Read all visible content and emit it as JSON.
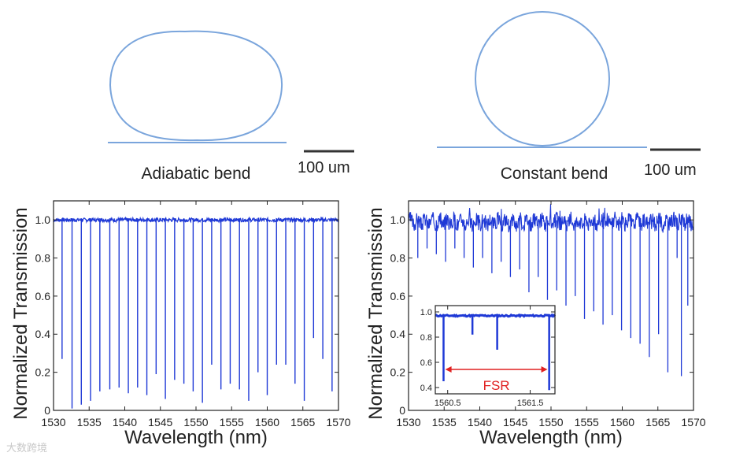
{
  "diagrams": {
    "adiabatic": {
      "caption": "Adiabatic bend",
      "scale_label": "100 um"
    },
    "constant": {
      "caption": "Constant bend",
      "scale_label": "100 um"
    }
  },
  "colors": {
    "ring": "#7aa5dc",
    "trace": "#1f39d6",
    "fsr_arrow": "#e02020",
    "axis": "#222222"
  },
  "watermark": "大数跨境",
  "chart_data": [
    {
      "type": "line",
      "id": "adiabatic",
      "title": "",
      "xlabel": "Wavelength (nm)",
      "ylabel": "Normalized Transmission",
      "xlim": [
        1530,
        1570
      ],
      "ylim": [
        0,
        1.1
      ],
      "xticks": [
        1530,
        1535,
        1540,
        1545,
        1550,
        1555,
        1560,
        1565,
        1570
      ],
      "yticks": [
        0,
        0.2,
        0.4,
        0.6,
        0.8,
        1.0
      ],
      "ytick_labels": [
        "0",
        "0.2",
        "0.4",
        "0.6",
        "0.8",
        "1.0"
      ],
      "baseline": 1.0,
      "noise": 0.01,
      "resonances": [
        [
          1531.2,
          0.27
        ],
        [
          1532.6,
          0.01
        ],
        [
          1533.9,
          0.03
        ],
        [
          1535.2,
          0.05
        ],
        [
          1536.5,
          0.1
        ],
        [
          1537.9,
          0.11
        ],
        [
          1539.2,
          0.12
        ],
        [
          1540.5,
          0.09
        ],
        [
          1541.8,
          0.12
        ],
        [
          1543.1,
          0.08
        ],
        [
          1544.4,
          0.19
        ],
        [
          1545.7,
          0.06
        ],
        [
          1547.0,
          0.16
        ],
        [
          1548.3,
          0.14
        ],
        [
          1549.6,
          0.1
        ],
        [
          1550.9,
          0.04
        ],
        [
          1552.2,
          0.24
        ],
        [
          1553.5,
          0.11
        ],
        [
          1554.8,
          0.14
        ],
        [
          1556.1,
          0.11
        ],
        [
          1557.4,
          0.05
        ],
        [
          1558.7,
          0.2
        ],
        [
          1560.0,
          0.08
        ],
        [
          1561.3,
          0.24
        ],
        [
          1562.6,
          0.24
        ],
        [
          1563.9,
          0.14
        ],
        [
          1565.2,
          0.05
        ],
        [
          1566.5,
          0.38
        ],
        [
          1567.8,
          0.27
        ],
        [
          1569.1,
          0.1
        ]
      ]
    },
    {
      "type": "line",
      "id": "constant",
      "title": "",
      "xlabel": "Wavelength (nm)",
      "ylabel": "Normalized Transmission",
      "xlim": [
        1530,
        1570
      ],
      "ylim": [
        0,
        1.1
      ],
      "xticks": [
        1530,
        1535,
        1540,
        1545,
        1550,
        1555,
        1560,
        1565,
        1570
      ],
      "yticks": [
        0,
        0.2,
        0.4,
        0.6,
        0.8,
        1.0
      ],
      "ytick_labels": [
        "0",
        "0.2",
        "0.4",
        "0.6",
        "0.8",
        "1.0"
      ],
      "baseline": 0.99,
      "noise": 0.04,
      "resonances": [
        [
          1531.3,
          0.8
        ],
        [
          1532.6,
          0.85
        ],
        [
          1533.9,
          0.82
        ],
        [
          1535.2,
          0.78
        ],
        [
          1536.5,
          0.85
        ],
        [
          1537.8,
          0.8
        ],
        [
          1539.1,
          0.75
        ],
        [
          1540.4,
          0.8
        ],
        [
          1541.7,
          0.72
        ],
        [
          1543.0,
          0.78
        ],
        [
          1544.3,
          0.7
        ],
        [
          1545.6,
          0.74
        ],
        [
          1546.9,
          0.62
        ],
        [
          1548.2,
          0.7
        ],
        [
          1549.5,
          0.58
        ],
        [
          1550.8,
          0.63
        ],
        [
          1552.1,
          0.55
        ],
        [
          1553.4,
          0.6
        ],
        [
          1554.7,
          0.48
        ],
        [
          1556.0,
          0.52
        ],
        [
          1557.3,
          0.45
        ],
        [
          1558.6,
          0.5
        ],
        [
          1559.9,
          0.42
        ],
        [
          1561.2,
          0.38
        ],
        [
          1562.5,
          0.35
        ],
        [
          1563.8,
          0.28
        ],
        [
          1565.1,
          0.4
        ],
        [
          1566.4,
          0.2
        ],
        [
          1567.7,
          0.8
        ],
        [
          1568.3,
          0.18
        ],
        [
          1569.2,
          0.55
        ]
      ],
      "inset": {
        "xlim": [
          1560.35,
          1561.8
        ],
        "ylim": [
          0.35,
          1.05
        ],
        "xticks": [
          1560.5,
          1561.5
        ],
        "yticks": [
          0.4,
          0.6,
          0.8,
          1.0
        ],
        "ytick_labels": [
          "0.4",
          "0.6",
          "0.8",
          "1.0"
        ],
        "baseline": 0.97,
        "resonances": [
          [
            1560.45,
            0.45
          ],
          [
            1560.8,
            0.82
          ],
          [
            1561.1,
            0.7
          ],
          [
            1561.73,
            0.38
          ]
        ],
        "annotation": "FSR",
        "fsr_arrow_x": [
          1560.47,
          1561.71
        ]
      }
    }
  ]
}
